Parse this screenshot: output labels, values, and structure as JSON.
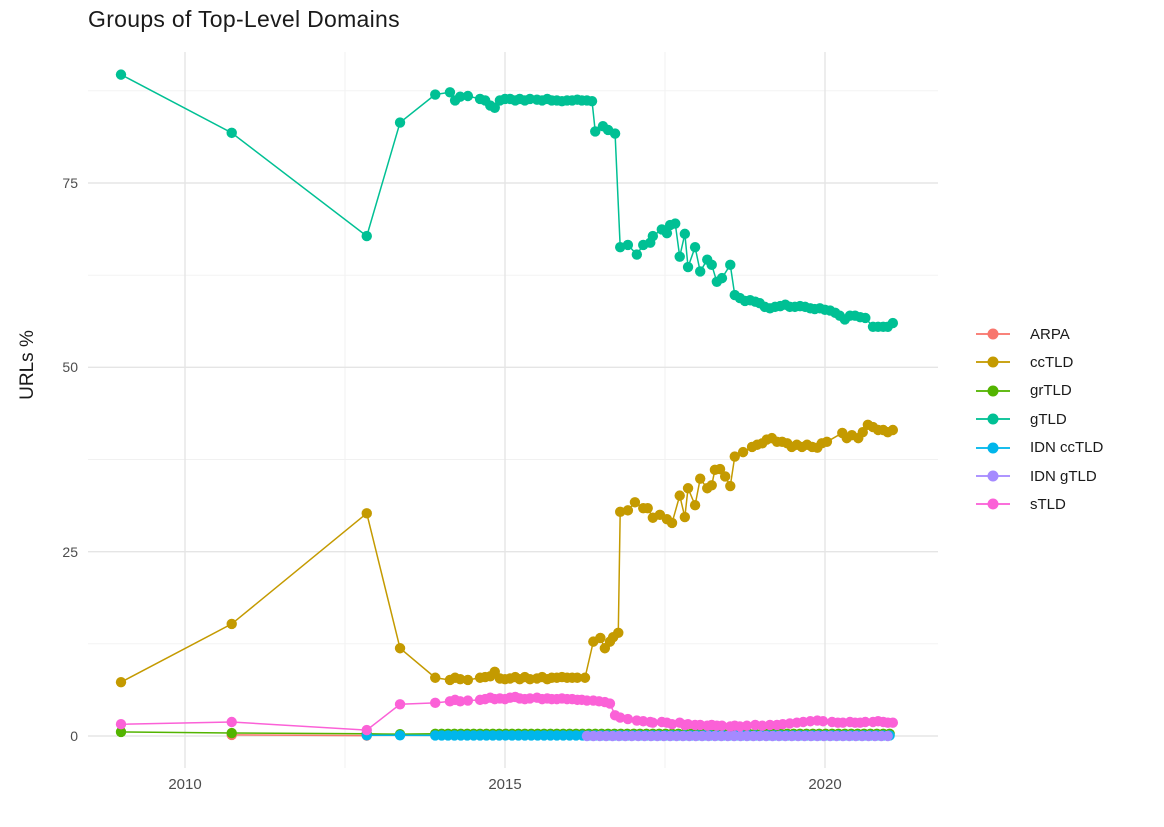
{
  "chart_data": {
    "type": "line",
    "title": "Groups of Top-Level Domains",
    "xlabel": "",
    "ylabel": "URLs %",
    "grid": "on",
    "legend_position": "right",
    "xlim": [
      2008.4,
      2021.8
    ],
    "ylim": [
      -4.6,
      94.4
    ],
    "x_ticks": [
      {
        "value": 2010,
        "label": "2010"
      },
      {
        "value": 2015,
        "label": "2015"
      },
      {
        "value": 2020,
        "label": "2020"
      }
    ],
    "x_minor_ticks": [
      2012.5,
      2017.5
    ],
    "y_ticks": [
      {
        "value": 0,
        "label": "0"
      },
      {
        "value": 25,
        "label": "25"
      },
      {
        "value": 50,
        "label": "50"
      },
      {
        "value": 75,
        "label": "75"
      }
    ],
    "y_minor_ticks": [
      12.5,
      37.5,
      62.5,
      87.5
    ],
    "series": [
      {
        "name": "ARPA",
        "color": "#F8766D",
        "points": [
          [
            2010.73,
            0.15
          ],
          [
            2012.84,
            0.05
          ]
        ]
      },
      {
        "name": "ccTLD",
        "color": "#C49A00",
        "points": [
          [
            2009.0,
            7.3
          ],
          [
            2010.73,
            15.2
          ],
          [
            2012.84,
            30.2
          ],
          [
            2013.36,
            11.9
          ],
          [
            2013.91,
            7.9
          ],
          [
            2014.14,
            7.6
          ],
          [
            2014.22,
            7.9
          ],
          [
            2014.3,
            7.7
          ],
          [
            2014.42,
            7.6
          ],
          [
            2014.61,
            7.9
          ],
          [
            2014.69,
            8.0
          ],
          [
            2014.77,
            8.1
          ],
          [
            2014.84,
            8.7
          ],
          [
            2014.92,
            7.8
          ],
          [
            2015.0,
            7.7
          ],
          [
            2015.08,
            7.8
          ],
          [
            2015.16,
            8.0
          ],
          [
            2015.23,
            7.7
          ],
          [
            2015.31,
            8.0
          ],
          [
            2015.39,
            7.7
          ],
          [
            2015.5,
            7.8
          ],
          [
            2015.58,
            8.0
          ],
          [
            2015.66,
            7.7
          ],
          [
            2015.73,
            7.9
          ],
          [
            2015.81,
            7.9
          ],
          [
            2015.89,
            8.0
          ],
          [
            2015.97,
            7.9
          ],
          [
            2016.05,
            7.9
          ],
          [
            2016.13,
            7.9
          ],
          [
            2016.25,
            7.9
          ],
          [
            2016.38,
            12.8
          ],
          [
            2016.49,
            13.3
          ],
          [
            2016.56,
            11.9
          ],
          [
            2016.64,
            12.8
          ],
          [
            2016.69,
            13.4
          ],
          [
            2016.77,
            14.0
          ],
          [
            2016.8,
            30.4
          ],
          [
            2016.92,
            30.6
          ],
          [
            2017.03,
            31.7
          ],
          [
            2017.16,
            30.9
          ],
          [
            2017.23,
            30.9
          ],
          [
            2017.31,
            29.6
          ],
          [
            2017.42,
            30.0
          ],
          [
            2017.53,
            29.4
          ],
          [
            2017.61,
            28.9
          ],
          [
            2017.73,
            32.6
          ],
          [
            2017.81,
            29.7
          ],
          [
            2017.86,
            33.6
          ],
          [
            2017.97,
            31.3
          ],
          [
            2018.05,
            34.9
          ],
          [
            2018.16,
            33.6
          ],
          [
            2018.23,
            34.0
          ],
          [
            2018.28,
            36.1
          ],
          [
            2018.36,
            36.2
          ],
          [
            2018.44,
            35.2
          ],
          [
            2018.52,
            33.9
          ],
          [
            2018.59,
            37.9
          ],
          [
            2018.72,
            38.5
          ],
          [
            2018.86,
            39.2
          ],
          [
            2018.94,
            39.5
          ],
          [
            2019.02,
            39.7
          ],
          [
            2019.09,
            40.2
          ],
          [
            2019.17,
            40.4
          ],
          [
            2019.25,
            39.9
          ],
          [
            2019.33,
            39.9
          ],
          [
            2019.41,
            39.7
          ],
          [
            2019.48,
            39.2
          ],
          [
            2019.56,
            39.5
          ],
          [
            2019.64,
            39.2
          ],
          [
            2019.72,
            39.5
          ],
          [
            2019.8,
            39.2
          ],
          [
            2019.88,
            39.1
          ],
          [
            2019.95,
            39.7
          ],
          [
            2020.03,
            39.9
          ],
          [
            2020.27,
            41.1
          ],
          [
            2020.34,
            40.4
          ],
          [
            2020.42,
            40.8
          ],
          [
            2020.52,
            40.4
          ],
          [
            2020.59,
            41.2
          ],
          [
            2020.67,
            42.2
          ],
          [
            2020.75,
            41.9
          ],
          [
            2020.83,
            41.5
          ],
          [
            2020.91,
            41.5
          ],
          [
            2020.98,
            41.2
          ],
          [
            2021.06,
            41.5
          ]
        ]
      },
      {
        "name": "grTLD",
        "color": "#53B400",
        "points": [
          [
            2009.0,
            0.55
          ],
          [
            2010.73,
            0.4
          ],
          [
            2012.84,
            0.3
          ],
          [
            2013.36,
            0.25
          ]
        ],
        "fill": {
          "from": 2013.91,
          "to": 2021.06,
          "step": 0.1,
          "value": 0.3
        }
      },
      {
        "name": "gTLD",
        "color": "#00C094",
        "points": [
          [
            2009.0,
            89.7
          ],
          [
            2010.73,
            81.8
          ],
          [
            2012.84,
            67.8
          ],
          [
            2013.36,
            83.2
          ],
          [
            2013.91,
            87.0
          ],
          [
            2014.14,
            87.3
          ],
          [
            2014.22,
            86.2
          ],
          [
            2014.3,
            86.7
          ],
          [
            2014.42,
            86.8
          ],
          [
            2014.61,
            86.4
          ],
          [
            2014.69,
            86.2
          ],
          [
            2014.77,
            85.5
          ],
          [
            2014.84,
            85.2
          ],
          [
            2014.92,
            86.2
          ],
          [
            2015.0,
            86.4
          ],
          [
            2015.08,
            86.4
          ],
          [
            2015.16,
            86.2
          ],
          [
            2015.23,
            86.4
          ],
          [
            2015.31,
            86.2
          ],
          [
            2015.39,
            86.4
          ],
          [
            2015.5,
            86.3
          ],
          [
            2015.58,
            86.2
          ],
          [
            2015.66,
            86.4
          ],
          [
            2015.73,
            86.2
          ],
          [
            2015.81,
            86.2
          ],
          [
            2015.89,
            86.1
          ],
          [
            2015.97,
            86.2
          ],
          [
            2016.05,
            86.2
          ],
          [
            2016.13,
            86.3
          ],
          [
            2016.2,
            86.2
          ],
          [
            2016.28,
            86.2
          ],
          [
            2016.36,
            86.1
          ],
          [
            2016.41,
            82.0
          ],
          [
            2016.53,
            82.7
          ],
          [
            2016.61,
            82.2
          ],
          [
            2016.72,
            81.7
          ],
          [
            2016.8,
            66.3
          ],
          [
            2016.92,
            66.6
          ],
          [
            2017.06,
            65.3
          ],
          [
            2017.16,
            66.6
          ],
          [
            2017.27,
            66.9
          ],
          [
            2017.31,
            67.8
          ],
          [
            2017.45,
            68.7
          ],
          [
            2017.53,
            68.2
          ],
          [
            2017.58,
            69.3
          ],
          [
            2017.66,
            69.5
          ],
          [
            2017.73,
            65.0
          ],
          [
            2017.81,
            68.1
          ],
          [
            2017.86,
            63.6
          ],
          [
            2017.97,
            66.3
          ],
          [
            2018.05,
            63.0
          ],
          [
            2018.16,
            64.6
          ],
          [
            2018.23,
            63.9
          ],
          [
            2018.31,
            61.6
          ],
          [
            2018.39,
            62.1
          ],
          [
            2018.52,
            63.9
          ],
          [
            2018.59,
            59.8
          ],
          [
            2018.67,
            59.4
          ],
          [
            2018.75,
            59.0
          ],
          [
            2018.83,
            59.1
          ],
          [
            2018.91,
            58.9
          ],
          [
            2018.98,
            58.7
          ],
          [
            2019.06,
            58.2
          ],
          [
            2019.14,
            58.0
          ],
          [
            2019.22,
            58.2
          ],
          [
            2019.3,
            58.3
          ],
          [
            2019.38,
            58.5
          ],
          [
            2019.45,
            58.2
          ],
          [
            2019.53,
            58.2
          ],
          [
            2019.61,
            58.3
          ],
          [
            2019.69,
            58.2
          ],
          [
            2019.77,
            58.0
          ],
          [
            2019.84,
            57.9
          ],
          [
            2019.92,
            58.0
          ],
          [
            2020.0,
            57.8
          ],
          [
            2020.08,
            57.7
          ],
          [
            2020.16,
            57.4
          ],
          [
            2020.23,
            57.0
          ],
          [
            2020.31,
            56.5
          ],
          [
            2020.39,
            57.0
          ],
          [
            2020.47,
            57.0
          ],
          [
            2020.55,
            56.8
          ],
          [
            2020.63,
            56.7
          ],
          [
            2020.75,
            55.5
          ],
          [
            2020.83,
            55.5
          ],
          [
            2020.91,
            55.5
          ],
          [
            2020.98,
            55.5
          ],
          [
            2021.06,
            56.0
          ]
        ]
      },
      {
        "name": "IDN ccTLD",
        "color": "#00B6EB",
        "points": [
          [
            2012.84,
            0.1
          ],
          [
            2013.36,
            0.1
          ]
        ],
        "fill": {
          "from": 2013.91,
          "to": 2021.06,
          "step": 0.1,
          "value": 0.08
        }
      },
      {
        "name": "IDN gTLD",
        "color": "#A58AFF",
        "points": [],
        "fill": {
          "from": 2016.28,
          "to": 2021.06,
          "step": 0.1,
          "value": 0.0
        }
      },
      {
        "name": "sTLD",
        "color": "#FB61D7",
        "points": [
          [
            2009.0,
            1.6
          ],
          [
            2010.73,
            1.9
          ],
          [
            2012.84,
            0.8
          ],
          [
            2013.36,
            4.3
          ],
          [
            2013.91,
            4.5
          ],
          [
            2014.14,
            4.7
          ],
          [
            2014.22,
            4.9
          ],
          [
            2014.3,
            4.7
          ],
          [
            2014.42,
            4.8
          ],
          [
            2014.61,
            4.9
          ],
          [
            2014.69,
            5.0
          ],
          [
            2014.77,
            5.2
          ],
          [
            2014.84,
            5.0
          ],
          [
            2014.92,
            5.1
          ],
          [
            2015.0,
            5.0
          ],
          [
            2015.08,
            5.2
          ],
          [
            2015.16,
            5.3
          ],
          [
            2015.23,
            5.1
          ],
          [
            2015.31,
            5.0
          ],
          [
            2015.39,
            5.1
          ],
          [
            2015.5,
            5.2
          ],
          [
            2015.58,
            5.0
          ],
          [
            2015.66,
            5.1
          ],
          [
            2015.73,
            5.0
          ],
          [
            2015.81,
            5.0
          ],
          [
            2015.89,
            5.1
          ],
          [
            2015.97,
            5.0
          ],
          [
            2016.05,
            5.0
          ],
          [
            2016.13,
            4.9
          ],
          [
            2016.2,
            4.9
          ],
          [
            2016.28,
            4.8
          ],
          [
            2016.38,
            4.8
          ],
          [
            2016.47,
            4.7
          ],
          [
            2016.56,
            4.6
          ],
          [
            2016.64,
            4.4
          ],
          [
            2016.72,
            2.8
          ],
          [
            2016.8,
            2.5
          ],
          [
            2016.92,
            2.3
          ],
          [
            2017.06,
            2.1
          ],
          [
            2017.16,
            2.0
          ],
          [
            2017.27,
            1.9
          ],
          [
            2017.31,
            1.8
          ],
          [
            2017.45,
            1.9
          ],
          [
            2017.53,
            1.8
          ],
          [
            2017.61,
            1.6
          ],
          [
            2017.73,
            1.8
          ],
          [
            2017.81,
            1.5
          ],
          [
            2017.86,
            1.6
          ],
          [
            2017.97,
            1.5
          ],
          [
            2018.05,
            1.5
          ],
          [
            2018.16,
            1.4
          ],
          [
            2018.23,
            1.5
          ],
          [
            2018.31,
            1.4
          ],
          [
            2018.39,
            1.4
          ],
          [
            2018.52,
            1.3
          ],
          [
            2018.59,
            1.4
          ],
          [
            2018.67,
            1.3
          ],
          [
            2018.78,
            1.4
          ],
          [
            2018.91,
            1.5
          ],
          [
            2019.02,
            1.4
          ],
          [
            2019.14,
            1.5
          ],
          [
            2019.25,
            1.5
          ],
          [
            2019.34,
            1.6
          ],
          [
            2019.45,
            1.7
          ],
          [
            2019.56,
            1.8
          ],
          [
            2019.66,
            1.9
          ],
          [
            2019.77,
            2.0
          ],
          [
            2019.88,
            2.1
          ],
          [
            2019.97,
            2.0
          ],
          [
            2020.11,
            1.9
          ],
          [
            2020.2,
            1.8
          ],
          [
            2020.28,
            1.8
          ],
          [
            2020.39,
            1.9
          ],
          [
            2020.47,
            1.8
          ],
          [
            2020.55,
            1.8
          ],
          [
            2020.63,
            1.9
          ],
          [
            2020.75,
            1.9
          ],
          [
            2020.83,
            2.0
          ],
          [
            2020.91,
            1.9
          ],
          [
            2020.98,
            1.8
          ],
          [
            2021.06,
            1.8
          ]
        ]
      }
    ]
  },
  "style": {
    "background": "#ffffff",
    "grid_major_color": "#e5e5e5",
    "grid_minor_color": "#f1f1f1",
    "axis_text_color": "#4d4d4d",
    "title_color": "#1a1a1a"
  }
}
